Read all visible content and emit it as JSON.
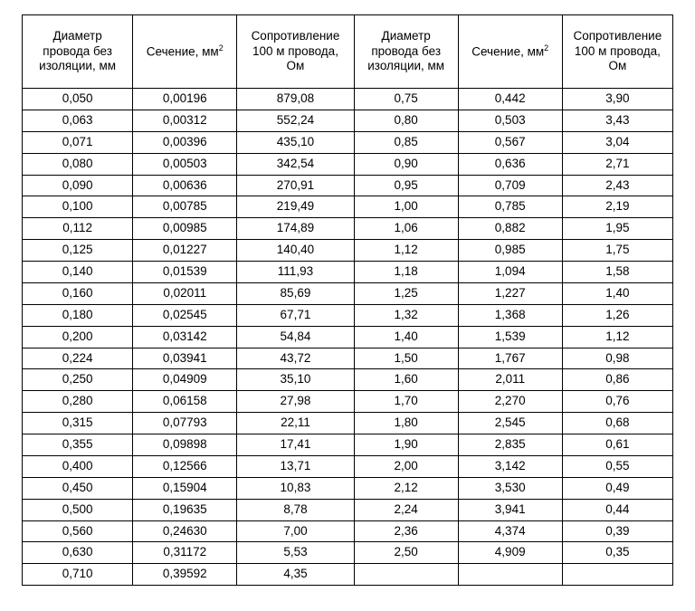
{
  "type": "table",
  "background_color": "#ffffff",
  "border_color": "#000000",
  "text_color": "#000000",
  "font_family": "Arial",
  "header_fontsize_pt": 10,
  "cell_fontsize_pt": 10,
  "columns": [
    {
      "key": "d1",
      "label_html": "Диаметр<br>провода без<br>изоляции, мм",
      "width_pct": 17
    },
    {
      "key": "s1",
      "label_html": "Сечение, мм<sup>2</sup>",
      "width_pct": 16
    },
    {
      "key": "r1",
      "label_html": "Сопротивление<br>100 м провода,<br>Ом",
      "width_pct": 18
    },
    {
      "key": "d2",
      "label_html": "Диаметр<br>провода без<br>изоляции, мм",
      "width_pct": 16
    },
    {
      "key": "s2",
      "label_html": "Сечение, мм<sup>2</sup>",
      "width_pct": 16
    },
    {
      "key": "r2",
      "label_html": "Сопротивление<br>100 м провода,<br>Ом",
      "width_pct": 17
    }
  ],
  "rows": [
    [
      "0,050",
      "0,00196",
      "879,08",
      "0,75",
      "0,442",
      "3,90"
    ],
    [
      "0,063",
      "0,00312",
      "552,24",
      "0,80",
      "0,503",
      "3,43"
    ],
    [
      "0,071",
      "0,00396",
      "435,10",
      "0,85",
      "0,567",
      "3,04"
    ],
    [
      "0,080",
      "0,00503",
      "342,54",
      "0,90",
      "0,636",
      "2,71"
    ],
    [
      "0,090",
      "0,00636",
      "270,91",
      "0,95",
      "0,709",
      "2,43"
    ],
    [
      "0,100",
      "0,00785",
      "219,49",
      "1,00",
      "0,785",
      "2,19"
    ],
    [
      "0,112",
      "0,00985",
      "174,89",
      "1,06",
      "0,882",
      "1,95"
    ],
    [
      "0,125",
      "0,01227",
      "140,40",
      "1,12",
      "0,985",
      "1,75"
    ],
    [
      "0,140",
      "0,01539",
      "111,93",
      "1,18",
      "1,094",
      "1,58"
    ],
    [
      "0,160",
      "0,02011",
      "85,69",
      "1,25",
      "1,227",
      "1,40"
    ],
    [
      "0,180",
      "0,02545",
      "67,71",
      "1,32",
      "1,368",
      "1,26"
    ],
    [
      "0,200",
      "0,03142",
      "54,84",
      "1,40",
      "1,539",
      "1,12"
    ],
    [
      "0,224",
      "0,03941",
      "43,72",
      "1,50",
      "1,767",
      "0,98"
    ],
    [
      "0,250",
      "0,04909",
      "35,10",
      "1,60",
      "2,011",
      "0,86"
    ],
    [
      "0,280",
      "0,06158",
      "27,98",
      "1,70",
      "2,270",
      "0,76"
    ],
    [
      "0,315",
      "0,07793",
      "22,11",
      "1,80",
      "2,545",
      "0,68"
    ],
    [
      "0,355",
      "0,09898",
      "17,41",
      "1,90",
      "2,835",
      "0,61"
    ],
    [
      "0,400",
      "0,12566",
      "13,71",
      "2,00",
      "3,142",
      "0,55"
    ],
    [
      "0,450",
      "0,15904",
      "10,83",
      "2,12",
      "3,530",
      "0,49"
    ],
    [
      "0,500",
      "0,19635",
      "8,78",
      "2,24",
      "3,941",
      "0,44"
    ],
    [
      "0,560",
      "0,24630",
      "7,00",
      "2,36",
      "4,374",
      "0,39"
    ],
    [
      "0,630",
      "0,31172",
      "5,53",
      "2,50",
      "4,909",
      "0,35"
    ],
    [
      "0,710",
      "0,39592",
      "4,35",
      "",
      "",
      ""
    ]
  ]
}
